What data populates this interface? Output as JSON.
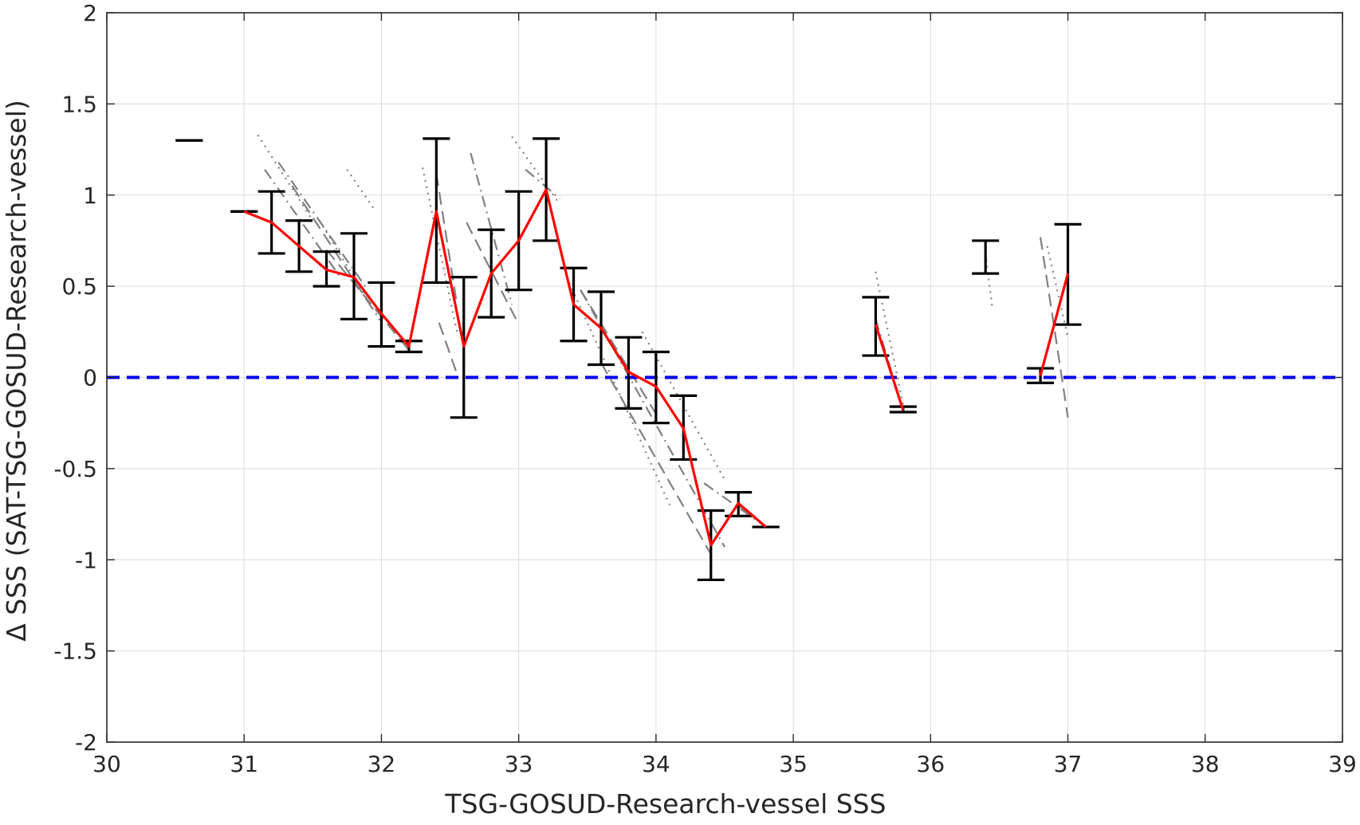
{
  "chart_data": {
    "type": "line",
    "title": "",
    "xlabel": "TSG-GOSUD-Research-vessel SSS",
    "ylabel": "Δ SSS (SAT-TSG-GOSUD-Research-vessel)",
    "xlim": [
      30,
      39
    ],
    "ylim": [
      -2,
      2
    ],
    "xticks": [
      30,
      31,
      32,
      33,
      34,
      35,
      36,
      37,
      38,
      39
    ],
    "xtick_labels": [
      "30",
      "31",
      "32",
      "33",
      "34",
      "35",
      "36",
      "37",
      "38",
      "39"
    ],
    "yticks": [
      2,
      1.5,
      1,
      0.5,
      0,
      -0.5,
      -1,
      -1.5,
      -2
    ],
    "ytick_labels": [
      "2",
      "1.5",
      "1",
      "0.5",
      "0",
      "-0.5",
      "-1",
      "-1.5",
      "-2"
    ],
    "grid": true,
    "zero_line": {
      "y": 0,
      "color": "#0000ee",
      "style": "dashed"
    },
    "colors": {
      "mean_line": "#ff0000",
      "error_bars": "#000000",
      "individual": "#808080",
      "grid": "#dcdcdc"
    },
    "error_bars": [
      {
        "x": 30.6,
        "y": 1.3,
        "low": 1.3,
        "high": 1.3
      },
      {
        "x": 31.0,
        "y": 0.91,
        "low": 0.91,
        "high": 0.91
      },
      {
        "x": 31.2,
        "y": 0.85,
        "low": 0.68,
        "high": 1.02
      },
      {
        "x": 31.4,
        "y": 0.72,
        "low": 0.58,
        "high": 0.86
      },
      {
        "x": 31.6,
        "y": 0.59,
        "low": 0.5,
        "high": 0.69
      },
      {
        "x": 31.8,
        "y": 0.55,
        "low": 0.32,
        "high": 0.79
      },
      {
        "x": 32.0,
        "y": 0.35,
        "low": 0.17,
        "high": 0.52
      },
      {
        "x": 32.2,
        "y": 0.17,
        "low": 0.14,
        "high": 0.2
      },
      {
        "x": 32.4,
        "y": 0.91,
        "low": 0.52,
        "high": 1.31
      },
      {
        "x": 32.6,
        "y": 0.17,
        "low": -0.22,
        "high": 0.55
      },
      {
        "x": 32.8,
        "y": 0.57,
        "low": 0.33,
        "high": 0.81
      },
      {
        "x": 33.0,
        "y": 0.75,
        "low": 0.48,
        "high": 1.02
      },
      {
        "x": 33.2,
        "y": 1.03,
        "low": 0.75,
        "high": 1.31
      },
      {
        "x": 33.4,
        "y": 0.4,
        "low": 0.2,
        "high": 0.6
      },
      {
        "x": 33.6,
        "y": 0.27,
        "low": 0.07,
        "high": 0.47
      },
      {
        "x": 33.8,
        "y": 0.03,
        "low": -0.17,
        "high": 0.22
      },
      {
        "x": 34.0,
        "y": -0.05,
        "low": -0.25,
        "high": 0.14
      },
      {
        "x": 34.2,
        "y": -0.28,
        "low": -0.45,
        "high": -0.1
      },
      {
        "x": 34.4,
        "y": -0.92,
        "low": -1.11,
        "high": -0.73
      },
      {
        "x": 34.6,
        "y": -0.69,
        "low": -0.76,
        "high": -0.63
      },
      {
        "x": 34.8,
        "y": -0.82,
        "low": -0.82,
        "high": -0.82
      },
      {
        "x": 35.6,
        "y": 0.29,
        "low": 0.12,
        "high": 0.44
      },
      {
        "x": 35.8,
        "y": -0.18,
        "low": -0.19,
        "high": -0.16
      },
      {
        "x": 36.4,
        "y": 0.66,
        "low": 0.57,
        "high": 0.75
      },
      {
        "x": 36.8,
        "y": 0.01,
        "low": -0.03,
        "high": 0.05
      },
      {
        "x": 37.0,
        "y": 0.57,
        "low": 0.29,
        "high": 0.84
      }
    ],
    "series": [
      {
        "type": "line",
        "x": [
          31.0,
          31.2,
          31.4,
          31.6,
          31.8,
          32.0,
          32.2,
          32.4,
          32.6,
          32.8,
          33.0,
          33.2,
          33.4,
          33.6,
          33.8,
          34.0,
          34.2,
          34.4,
          34.6,
          34.8
        ],
        "y": [
          0.91,
          0.85,
          0.72,
          0.59,
          0.55,
          0.35,
          0.17,
          0.91,
          0.17,
          0.57,
          0.75,
          1.03,
          0.4,
          0.27,
          0.03,
          -0.05,
          -0.28,
          -0.92,
          -0.69,
          -0.82
        ]
      },
      {
        "type": "line",
        "x": [
          35.6,
          35.8
        ],
        "y": [
          0.29,
          -0.18
        ]
      },
      {
        "type": "line",
        "x": [
          36.8,
          37.0
        ],
        "y": [
          0.01,
          0.57
        ]
      }
    ],
    "individual_tracks": [
      {
        "style": "dotted",
        "x": [
          31.1,
          31.5
        ],
        "y": [
          1.33,
          0.86
        ]
      },
      {
        "style": "dashdot",
        "x": [
          31.15,
          31.7
        ],
        "y": [
          1.14,
          0.55
        ]
      },
      {
        "style": "dashdot",
        "x": [
          31.25,
          31.9
        ],
        "y": [
          1.18,
          0.48
        ]
      },
      {
        "style": "dashed",
        "x": [
          31.35,
          31.95
        ],
        "y": [
          1.05,
          0.36
        ]
      },
      {
        "style": "dotted",
        "x": [
          31.55,
          32.0
        ],
        "y": [
          0.86,
          0.3
        ]
      },
      {
        "style": "dashed",
        "x": [
          31.6,
          32.2
        ],
        "y": [
          0.7,
          0.15
        ]
      },
      {
        "style": "dotted",
        "x": [
          31.75,
          31.95
        ],
        "y": [
          1.14,
          0.92
        ]
      },
      {
        "style": "dotted",
        "x": [
          32.3,
          32.55
        ],
        "y": [
          1.15,
          0.25
        ]
      },
      {
        "style": "dashed",
        "x": [
          32.4,
          32.55
        ],
        "y": [
          1.12,
          0.4
        ]
      },
      {
        "style": "dashed",
        "x": [
          32.42,
          32.55
        ],
        "y": [
          0.3,
          0.02
        ]
      },
      {
        "style": "dashdot",
        "x": [
          32.65,
          32.95
        ],
        "y": [
          1.23,
          0.4
        ]
      },
      {
        "style": "dashed",
        "x": [
          32.62,
          32.98
        ],
        "y": [
          0.85,
          0.32
        ]
      },
      {
        "style": "dotted",
        "x": [
          32.95,
          33.3
        ],
        "y": [
          1.32,
          0.95
        ]
      },
      {
        "style": "dashdot",
        "x": [
          33.05,
          33.3
        ],
        "y": [
          1.14,
          0.98
        ]
      },
      {
        "style": "dotted",
        "x": [
          33.35,
          34.1
        ],
        "y": [
          0.55,
          -0.7
        ]
      },
      {
        "style": "dashdot",
        "x": [
          33.45,
          34.5
        ],
        "y": [
          0.48,
          -0.93
        ]
      },
      {
        "style": "dashed",
        "x": [
          33.45,
          34.0
        ],
        "y": [
          0.48,
          -0.2
        ]
      },
      {
        "style": "dashed",
        "x": [
          33.6,
          34.4
        ],
        "y": [
          0.08,
          -0.97
        ]
      },
      {
        "style": "dotted",
        "x": [
          33.9,
          34.5
        ],
        "y": [
          0.25,
          -0.56
        ]
      },
      {
        "style": "dashdot",
        "x": [
          34.35,
          34.8
        ],
        "y": [
          -0.58,
          -0.82
        ]
      },
      {
        "style": "dashed",
        "x": [
          34.6,
          34.8
        ],
        "y": [
          -0.7,
          -0.82
        ]
      },
      {
        "style": "dotted",
        "x": [
          35.6,
          35.8
        ],
        "y": [
          0.58,
          -0.15
        ]
      },
      {
        "style": "dashdot",
        "x": [
          35.6,
          35.8
        ],
        "y": [
          0.32,
          -0.18
        ]
      },
      {
        "style": "dotted",
        "x": [
          36.4,
          36.45
        ],
        "y": [
          0.68,
          0.38
        ]
      },
      {
        "style": "dashed",
        "x": [
          36.8,
          37.0
        ],
        "y": [
          0.77,
          -0.22
        ]
      },
      {
        "style": "dotted",
        "x": [
          36.85,
          37.0
        ],
        "y": [
          0.72,
          0.22
        ]
      }
    ]
  }
}
